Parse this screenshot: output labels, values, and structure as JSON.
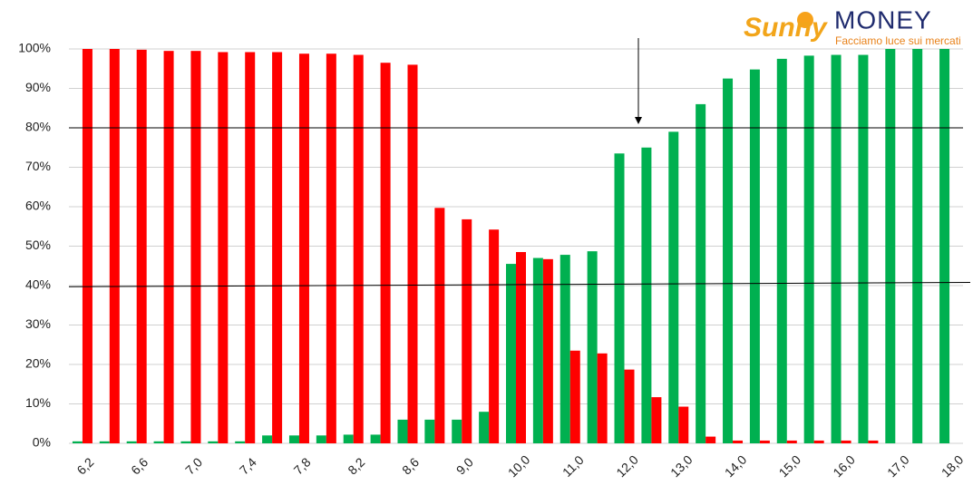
{
  "chart_data": {
    "type": "bar",
    "logo": {
      "brand": "Sunny",
      "name": "MONEY",
      "tagline": "Facciamo luce sui mercati"
    },
    "categories": [
      "6,2",
      null,
      "6,6",
      null,
      "7,0",
      null,
      "7,4",
      null,
      "7,8",
      null,
      "8,2",
      null,
      "8,6",
      null,
      "9,0",
      null,
      "10,0",
      null,
      "11,0",
      null,
      "12,0",
      null,
      "13,0",
      null,
      "14,0",
      null,
      "15,0",
      null,
      "16,0",
      null,
      "17,0",
      null,
      "18,0"
    ],
    "series": [
      {
        "color": "#00b050",
        "values": [
          0.5,
          0.5,
          0.5,
          0.5,
          0.5,
          0.5,
          0.5,
          2,
          2,
          2,
          2.2,
          2.2,
          6,
          6,
          6,
          8,
          45.5,
          47,
          47.8,
          48.7,
          73.5,
          75,
          79,
          86,
          92.5,
          94.8,
          97.5,
          98.3,
          98.5,
          98.5,
          100,
          100,
          100
        ]
      },
      {
        "color": "#ff0000",
        "values": [
          100,
          100,
          99.8,
          99.5,
          99.5,
          99.2,
          99.2,
          99.2,
          98.8,
          98.8,
          98.5,
          96.5,
          96,
          59.7,
          56.8,
          54.2,
          48.5,
          46.7,
          23.5,
          22.8,
          18.7,
          11.7,
          9.3,
          1.7,
          0.7,
          0.7,
          0.7,
          0.7,
          0.7,
          0.7,
          0,
          0,
          0
        ]
      }
    ],
    "ylim": [
      0,
      100
    ],
    "yticks": [
      {
        "value": 0,
        "label": "0%"
      },
      {
        "value": 10,
        "label": "10%"
      },
      {
        "value": 20,
        "label": "20%"
      },
      {
        "value": 30,
        "label": "30%"
      },
      {
        "value": 40,
        "label": "40%"
      },
      {
        "value": 50,
        "label": "50%"
      },
      {
        "value": 60,
        "label": "60%"
      },
      {
        "value": 70,
        "label": "70%"
      },
      {
        "value": 80,
        "label": "80%"
      },
      {
        "value": 90,
        "label": "90%"
      },
      {
        "value": 100,
        "label": "100%"
      }
    ],
    "grid": true,
    "reference_line": 80,
    "trend_line": [
      39.7,
      40.8
    ]
  }
}
